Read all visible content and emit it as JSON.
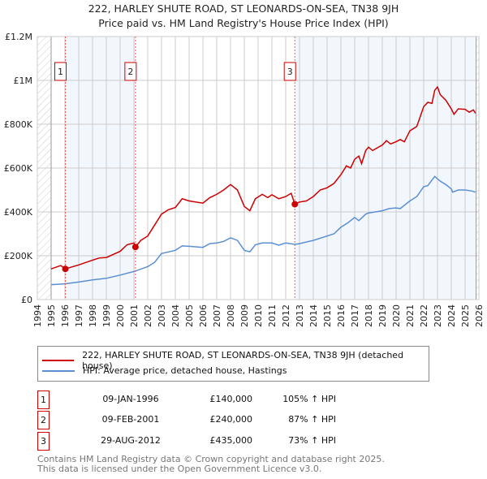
{
  "chart_data": {
    "type": "line",
    "title": "222, HARLEY SHUTE ROAD, ST LEONARDS-ON-SEA, TN38 9JH",
    "subtitle": "Price paid vs. HM Land Registry's House Price Index (HPI)",
    "xlim": [
      1994,
      2026
    ],
    "ylim": [
      0,
      1200000
    ],
    "y_ticks": [
      {
        "v": 0,
        "label": "£0"
      },
      {
        "v": 200000,
        "label": "£200K"
      },
      {
        "v": 400000,
        "label": "£400K"
      },
      {
        "v": 600000,
        "label": "£600K"
      },
      {
        "v": 800000,
        "label": "£800K"
      },
      {
        "v": 1000000,
        "label": "£1M"
      },
      {
        "v": 1200000,
        "label": "£1.2M"
      }
    ],
    "x_ticks": [
      "1994",
      "1995",
      "1996",
      "1997",
      "1998",
      "1999",
      "2000",
      "2001",
      "2002",
      "2003",
      "2004",
      "2005",
      "2006",
      "2007",
      "2008",
      "2009",
      "2010",
      "2011",
      "2012",
      "2013",
      "2014",
      "2015",
      "2016",
      "2017",
      "2018",
      "2019",
      "2020",
      "2021",
      "2022",
      "2023",
      "2024",
      "2025",
      "2026"
    ],
    "grid": true,
    "series": [
      {
        "name": "222, HARLEY SHUTE ROAD, ST LEONARDS-ON-SEA, TN38 9JH (detached house)",
        "color": "#cc0000",
        "x": [
          1995,
          1995.7,
          1996.03,
          1997,
          1998,
          1998.5,
          1999,
          2000,
          2000.5,
          2001,
          2001.1,
          2001.5,
          2002,
          2002.5,
          2003,
          2003.5,
          2004,
          2004.5,
          2005,
          2006,
          2006.5,
          2007,
          2007.5,
          2008,
          2008.5,
          2009,
          2009.4,
          2009.8,
          2010.3,
          2010.7,
          2011,
          2011.5,
          2012,
          2012.4,
          2012.66,
          2013,
          2013.5,
          2014,
          2014.5,
          2015,
          2015.5,
          2016,
          2016.4,
          2016.7,
          2017,
          2017.3,
          2017.5,
          2017.8,
          2018,
          2018.3,
          2019,
          2019.3,
          2019.6,
          2020,
          2020.3,
          2020.6,
          2021,
          2021.5,
          2022,
          2022.3,
          2022.6,
          2022.8,
          2023,
          2023.2,
          2023.6,
          2024,
          2024.2,
          2024.5,
          2025,
          2025.3,
          2025.6,
          2025.75
        ],
        "y": [
          140,
          155,
          140,
          158,
          180,
          190,
          192,
          220,
          250,
          258,
          240,
          270,
          290,
          340,
          390,
          410,
          420,
          460,
          450,
          440,
          465,
          480,
          500,
          525,
          500,
          425,
          405,
          460,
          480,
          465,
          478,
          460,
          470,
          485,
          435,
          445,
          450,
          470,
          500,
          510,
          530,
          570,
          610,
          600,
          640,
          655,
          620,
          680,
          695,
          680,
          705,
          725,
          710,
          720,
          730,
          720,
          770,
          790,
          880,
          900,
          895,
          955,
          970,
          935,
          910,
          870,
          845,
          870,
          868,
          855,
          865,
          850
        ]
      },
      {
        "name": "HPI: Average price, detached house, Hastings",
        "color": "#5b8fd4",
        "x": [
          1995,
          1996,
          1997,
          1998,
          1999,
          2000,
          2001,
          2002,
          2002.5,
          2003,
          2004,
          2004.5,
          2005,
          2006,
          2006.5,
          2007,
          2007.5,
          2008,
          2008.5,
          2009,
          2009.4,
          2009.8,
          2010.3,
          2011,
          2011.5,
          2012,
          2012.66,
          2013,
          2014,
          2015,
          2015.5,
          2016,
          2016.5,
          2017,
          2017.3,
          2017.8,
          2018,
          2019,
          2019.5,
          2020,
          2020.3,
          2021,
          2021.5,
          2022,
          2022.3,
          2022.8,
          2023.2,
          2023.6,
          2024,
          2024.1,
          2024.5,
          2025,
          2025.5,
          2025.75
        ],
        "y": [
          68,
          72,
          80,
          90,
          97,
          112,
          128,
          150,
          170,
          210,
          225,
          245,
          243,
          238,
          255,
          258,
          265,
          282,
          270,
          225,
          218,
          250,
          258,
          258,
          248,
          258,
          252,
          255,
          270,
          290,
          300,
          330,
          350,
          375,
          360,
          390,
          395,
          405,
          415,
          418,
          415,
          450,
          470,
          515,
          520,
          562,
          540,
          525,
          505,
          490,
          500,
          500,
          495,
          490
        ]
      }
    ],
    "y_units": "thousands GBP",
    "sales": [
      {
        "n": "1",
        "x": 1996.03,
        "y": 140,
        "date": "09-JAN-1996",
        "price": "£140,000",
        "hpi": "105% ↑ HPI"
      },
      {
        "n": "2",
        "x": 2001.11,
        "y": 240,
        "date": "09-FEB-2001",
        "price": "£240,000",
        "hpi": "87% ↑ HPI"
      },
      {
        "n": "3",
        "x": 2012.66,
        "y": 435,
        "date": "29-AUG-2012",
        "price": "£435,000",
        "hpi": "73% ↑ HPI"
      }
    ],
    "legend_placement": "below"
  },
  "footer": [
    "Contains HM Land Registry data © Crown copyright and database right 2025.",
    "This data is licensed under the Open Government Licence v3.0."
  ]
}
